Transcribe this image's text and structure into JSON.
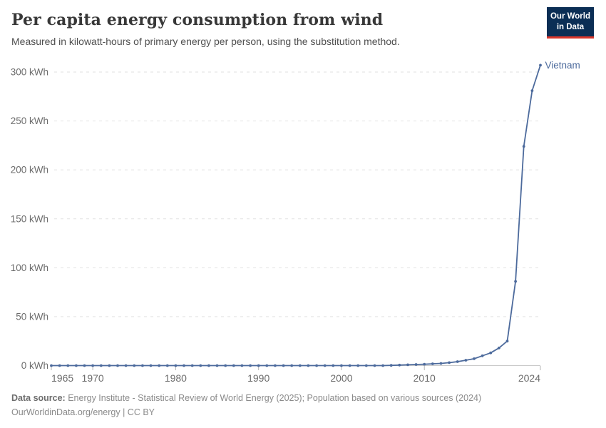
{
  "header": {
    "title": "Per capita energy consumption from wind",
    "subtitle": "Measured in kilowatt-hours of primary energy per person, using the substitution method.",
    "logo_line1": "Our World",
    "logo_line2": "in Data",
    "logo_bg_color": "#0b2e55",
    "logo_accent_color": "#d8352a"
  },
  "chart_data": {
    "type": "line",
    "title": "Per capita energy consumption from wind",
    "xlabel": "",
    "ylabel": "kWh",
    "xlim": [
      1965,
      2024
    ],
    "ylim": [
      0,
      300
    ],
    "x_ticks": [
      1965,
      1970,
      1980,
      1990,
      2000,
      2010,
      2024
    ],
    "y_ticks": [
      0,
      50,
      100,
      150,
      200,
      250,
      300
    ],
    "y_tick_suffix": " kWh",
    "grid": "horizontal-dashed",
    "legend_position": "end-of-line-label",
    "series": [
      {
        "name": "Vietnam",
        "color": "#4c6a9c",
        "x": [
          1965,
          1966,
          1967,
          1968,
          1969,
          1970,
          1971,
          1972,
          1973,
          1974,
          1975,
          1976,
          1977,
          1978,
          1979,
          1980,
          1981,
          1982,
          1983,
          1984,
          1985,
          1986,
          1987,
          1988,
          1989,
          1990,
          1991,
          1992,
          1993,
          1994,
          1995,
          1996,
          1997,
          1998,
          1999,
          2000,
          2001,
          2002,
          2003,
          2004,
          2005,
          2006,
          2007,
          2008,
          2009,
          2010,
          2011,
          2012,
          2013,
          2014,
          2015,
          2016,
          2017,
          2018,
          2019,
          2020,
          2021,
          2022,
          2023,
          2024
        ],
        "values": [
          0,
          0,
          0,
          0,
          0,
          0,
          0,
          0,
          0,
          0,
          0,
          0,
          0,
          0,
          0,
          0,
          0,
          0,
          0,
          0,
          0,
          0,
          0,
          0,
          0,
          0,
          0,
          0,
          0,
          0,
          0,
          0,
          0,
          0,
          0,
          0,
          0,
          0,
          0,
          0,
          0,
          0.2,
          0.5,
          0.8,
          1.1,
          1.4,
          1.8,
          2.2,
          3,
          4,
          5.5,
          7,
          10,
          13,
          18,
          25,
          86,
          224,
          281,
          307
        ]
      }
    ]
  },
  "footer": {
    "source_label": "Data source:",
    "source_text": " Energy Institute - Statistical Review of World Energy (2025); Population based on various sources (2024)",
    "url_line": "OurWorldinData.org/energy | CC BY"
  }
}
